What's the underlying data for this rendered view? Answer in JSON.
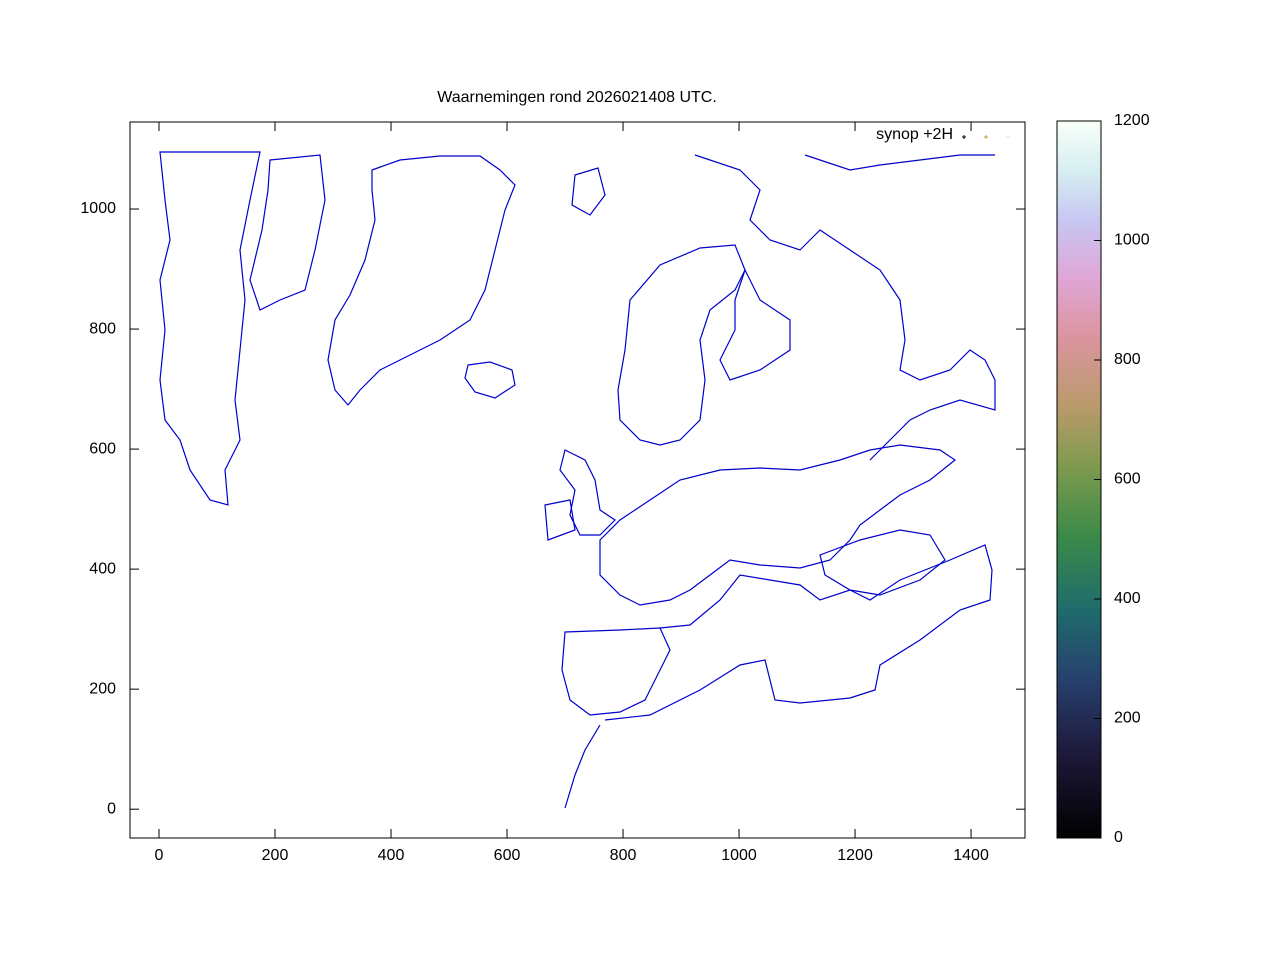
{
  "chart_data": {
    "type": "scatter",
    "title": "Waarnemingen rond 2026021408 UTC.",
    "series": [
      {
        "name": "synop +2H",
        "color": "#000000",
        "x": [],
        "values": []
      }
    ],
    "legend": "top-right",
    "xlim": [
      -50,
      1493
    ],
    "ylim": [
      -48,
      1145
    ],
    "xticks": [
      0,
      200,
      400,
      600,
      800,
      1000,
      1200,
      1400
    ],
    "yticks": [
      0,
      200,
      400,
      600,
      800,
      1000
    ],
    "cblim": [
      0,
      1200
    ],
    "cbticks": [
      0,
      200,
      400,
      600,
      800,
      1000,
      1200
    ]
  }
}
